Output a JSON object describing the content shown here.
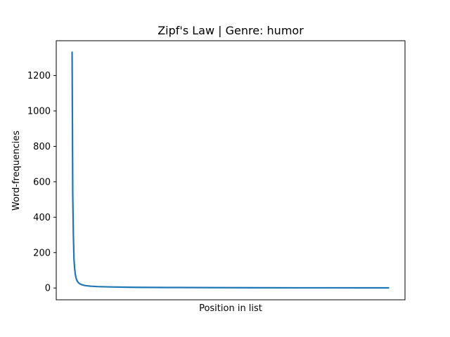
{
  "chart_data": {
    "type": "line",
    "title": "Zipf's Law | Genre: humor",
    "xlabel": "Position in list",
    "ylabel": "Word-frequencies",
    "ylim": [
      -66.5,
      1396.5
    ],
    "xlim": [
      -25,
      525
    ],
    "x_ticks_shown": false,
    "y_ticks": [
      0,
      200,
      400,
      600,
      800,
      1000,
      1200
    ],
    "series": [
      {
        "color": "#1f77b4",
        "x": [
          0,
          1,
          2,
          3,
          4,
          5,
          6,
          7,
          8,
          10,
          12,
          15,
          20,
          25,
          30,
          40,
          50,
          60,
          80,
          100,
          150,
          200,
          250,
          300,
          350,
          400,
          450,
          500
        ],
        "values": [
          1335,
          530,
          300,
          160,
          110,
          80,
          60,
          48,
          40,
          30,
          24,
          19,
          14,
          12,
          10,
          8,
          7,
          6,
          5,
          4,
          3,
          2.5,
          2,
          1.5,
          1.2,
          1.1,
          1,
          1
        ]
      }
    ],
    "grid": false,
    "legend": "none"
  }
}
